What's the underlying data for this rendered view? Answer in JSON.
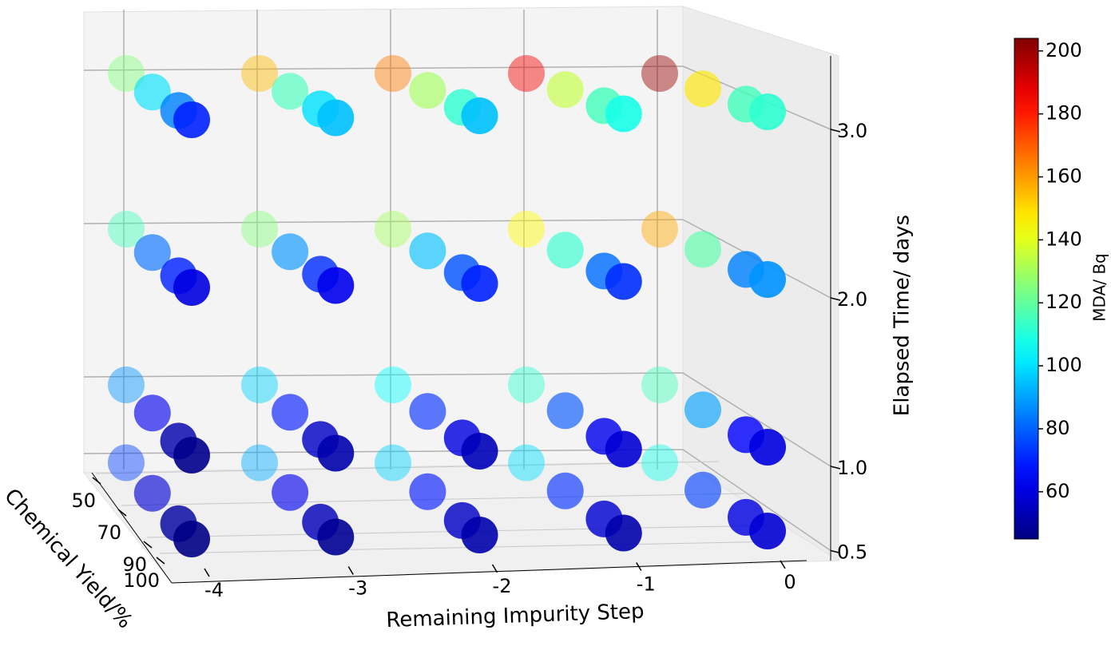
{
  "chart_data": {
    "type": "scatter3d",
    "xlabel": "Remaining Impurity Step",
    "ylabel": "Chemical Yield/%",
    "zlabel": "Elapsed Time/ days",
    "colorbar_label": "MDA/ Bq",
    "colormap": "jet",
    "clim": [
      45,
      204
    ],
    "cticks": [
      60,
      80,
      100,
      120,
      140,
      160,
      180,
      200
    ],
    "xticks": [
      -4,
      -3,
      -2,
      -1,
      0
    ],
    "yticks": [
      50,
      70,
      90,
      100
    ],
    "zticks": [
      0.5,
      {
        "value": 1,
        "label": "1.0"
      },
      {
        "value": 2,
        "label": "2.0"
      },
      {
        "value": 3,
        "label": "3.0"
      }
    ],
    "x": [
      -4,
      -4,
      -4,
      -4,
      -3,
      -3,
      -3,
      -3,
      -2,
      -2,
      -2,
      -2,
      -1,
      -1,
      -1,
      -1,
      0,
      0,
      0,
      0,
      -4,
      -4,
      -4,
      -4,
      -3,
      -3,
      -3,
      -3,
      -2,
      -2,
      -2,
      -2,
      -1,
      -1,
      -1,
      -1,
      0,
      0,
      0,
      0,
      -4,
      -4,
      -4,
      -4,
      -3,
      -3,
      -3,
      -3,
      -2,
      -2,
      -2,
      -2,
      -1,
      -1,
      -1,
      -1,
      0,
      0,
      0,
      0,
      -4,
      -4,
      -4,
      -4,
      -3,
      -3,
      -3,
      -3,
      -2,
      -2,
      -2,
      -2,
      -1,
      -1,
      -1,
      -1,
      0,
      0,
      0,
      0
    ],
    "y": [
      50,
      70,
      90,
      100,
      50,
      70,
      90,
      100,
      50,
      70,
      90,
      100,
      50,
      70,
      90,
      100,
      50,
      70,
      90,
      100,
      50,
      70,
      90,
      100,
      50,
      70,
      90,
      100,
      50,
      70,
      90,
      100,
      50,
      70,
      90,
      100,
      50,
      70,
      90,
      100,
      50,
      70,
      90,
      100,
      50,
      70,
      90,
      100,
      50,
      70,
      90,
      100,
      50,
      70,
      90,
      100,
      50,
      70,
      90,
      100,
      50,
      70,
      90,
      100,
      50,
      70,
      90,
      100,
      50,
      70,
      90,
      100,
      50,
      70,
      90,
      100,
      50,
      70,
      90,
      100
    ],
    "z": [
      3,
      3,
      3,
      3,
      3,
      3,
      3,
      3,
      3,
      3,
      3,
      3,
      3,
      3,
      3,
      3,
      3,
      3,
      3,
      3,
      2,
      2,
      2,
      2,
      2,
      2,
      2,
      2,
      2,
      2,
      2,
      2,
      2,
      2,
      2,
      2,
      2,
      2,
      2,
      2,
      1,
      1,
      1,
      1,
      1,
      1,
      1,
      1,
      1,
      1,
      1,
      1,
      1,
      1,
      1,
      1,
      1,
      1,
      1,
      1,
      0.5,
      0.5,
      0.5,
      0.5,
      0.5,
      0.5,
      0.5,
      0.5,
      0.5,
      0.5,
      0.5,
      0.5,
      0.5,
      0.5,
      0.5,
      0.5,
      0.5,
      0.5,
      0.5,
      0.5
    ],
    "values": [
      125,
      100,
      85,
      70,
      155,
      115,
      100,
      95,
      165,
      130,
      112,
      95,
      185,
      135,
      115,
      108,
      200,
      148,
      115,
      112,
      115,
      82,
      70,
      60,
      125,
      88,
      72,
      62,
      130,
      95,
      78,
      70,
      145,
      112,
      82,
      72,
      158,
      118,
      85,
      88,
      88,
      62,
      52,
      47,
      98,
      68,
      56,
      52,
      105,
      72,
      60,
      54,
      112,
      78,
      62,
      58,
      115,
      90,
      65,
      60,
      75,
      58,
      50,
      46,
      92,
      62,
      54,
      48,
      98,
      68,
      56,
      52,
      100,
      72,
      58,
      52,
      108,
      75,
      60,
      58
    ]
  }
}
